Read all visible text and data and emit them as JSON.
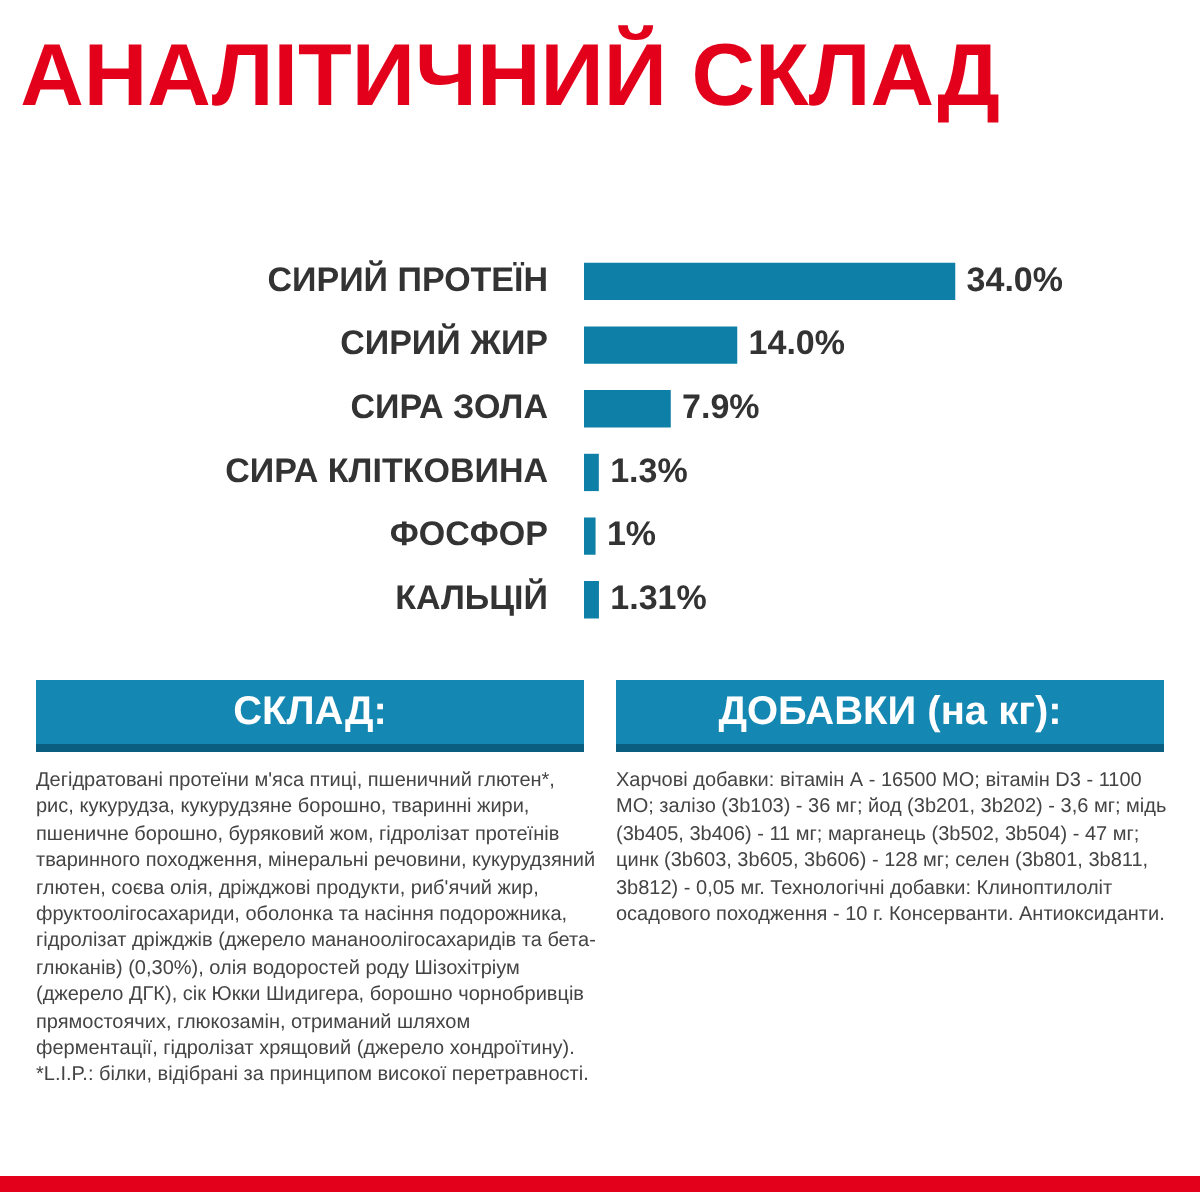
{
  "chart_data": {
    "type": "bar",
    "orientation": "horizontal",
    "title": "АНАЛІТИЧНИЙ СКЛАД",
    "categories": [
      "СИРИЙ ПРОТЕЇН",
      "СИРИЙ ЖИР",
      "СИРА ЗОЛА",
      "СИРА КЛІТКОВИНА",
      "ФОСФОР",
      "КАЛЬЦІЙ"
    ],
    "values": [
      34.0,
      14.0,
      7.9,
      1.3,
      1,
      1.31
    ],
    "value_labels": [
      "34.0%",
      "14.0%",
      "7.9%",
      "1.3%",
      "1%",
      "1.31%"
    ],
    "color": "#0e7fa6",
    "legend": false,
    "annotations": [
      "СКЛАД:",
      "Дегідратовані протеїни м'яса птиці, пшеничний глютен*, рис, кукурудза, кукурудзяне борошно, тваринні жири, пшеничне борошно, буряковий жом, гідролізат протеїнів тваринного походження, мінеральні речовини, кукурудзяний глютен, соєва олія, дріжджові продукти, риб'ячий жир, фруктоолігосахариди, оболонка та насіння подорожника, гідролізат дріжджів (джерело мананоолігосахаридів та бета-глюканів) (0,30%), олія водоростей роду Шізохітріум (джерело ДГК), сік Юкки Шидигера, борошно чорнобривців прямостоячих, глюкозамін, отриманий шляхом ферментації, гідролізат хрящовий (джерело хондроїтину).",
      "*L.I.P.: білки, відібрані за принципом високої перетравності.",
      "ДОБАВКИ (на кг):",
      "Харчові добавки: вітамін А - 16500 МО; вітамін D3 - 1100 МО; залізо (3b103) - 36 мг; йод (3b201, 3b202) - 3,6 мг; мідь (3b405, 3b406) - 11 мг; марганець (3b502, 3b504) - 47 мг; цинк (3b603, 3b605, 3b606) - 128 мг; селен (3b801, 3b811, 3b812) - 0,05 мг. Технологічні добавки: Клиноптилоліт осадового походження - 10 г. Консерванти. Антиоксиданти."
    ]
  }
}
